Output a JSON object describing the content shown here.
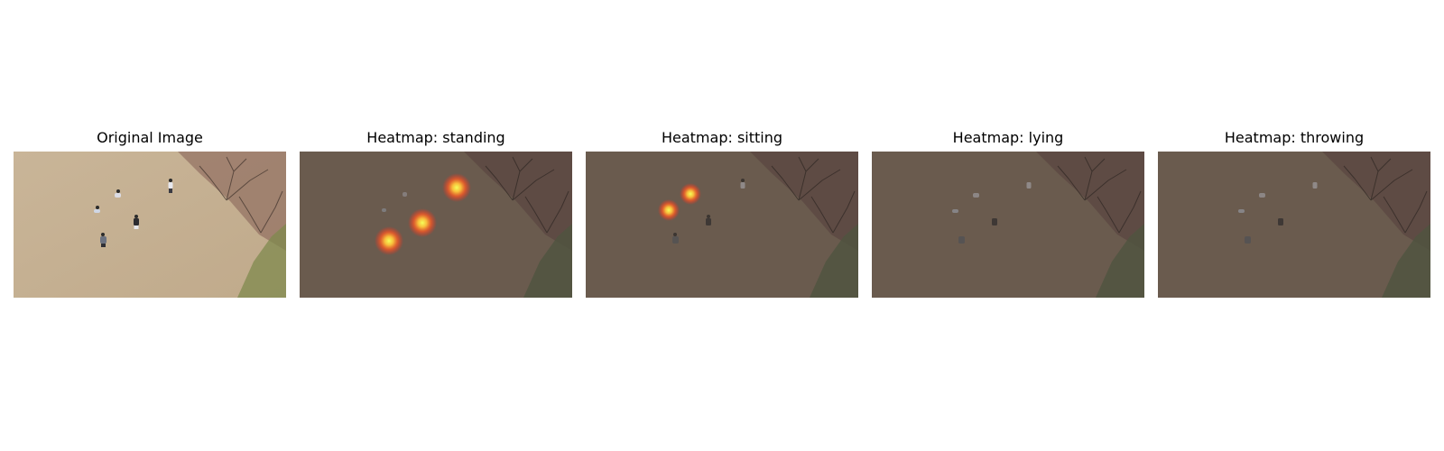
{
  "panels": [
    {
      "title": "Original Image",
      "kind": "original",
      "hotspots": []
    },
    {
      "title": "Heatmap: standing",
      "kind": "heatmap",
      "hotspots": [
        "person-upper-right",
        "person-center",
        "person-lower-left"
      ]
    },
    {
      "title": "Heatmap: sitting",
      "kind": "heatmap",
      "hotspots": [
        "person-center-left",
        "person-left"
      ]
    },
    {
      "title": "Heatmap: lying",
      "kind": "heatmap",
      "hotspots": []
    },
    {
      "title": "Heatmap: throwing",
      "kind": "heatmap",
      "hotspots": []
    }
  ],
  "colors": {
    "ground_original": "#c6b193",
    "ground_overlay": "#6a5b4e",
    "tree_original": "#8d6a5e",
    "tree_overlay": "#5a4540",
    "grass_original": "#7f8a4e",
    "grass_overlay": "#4f5440",
    "heat_core": "#f4ff5a",
    "heat_mid": "#ff9a2a",
    "heat_outer": "#ff2a1a"
  }
}
